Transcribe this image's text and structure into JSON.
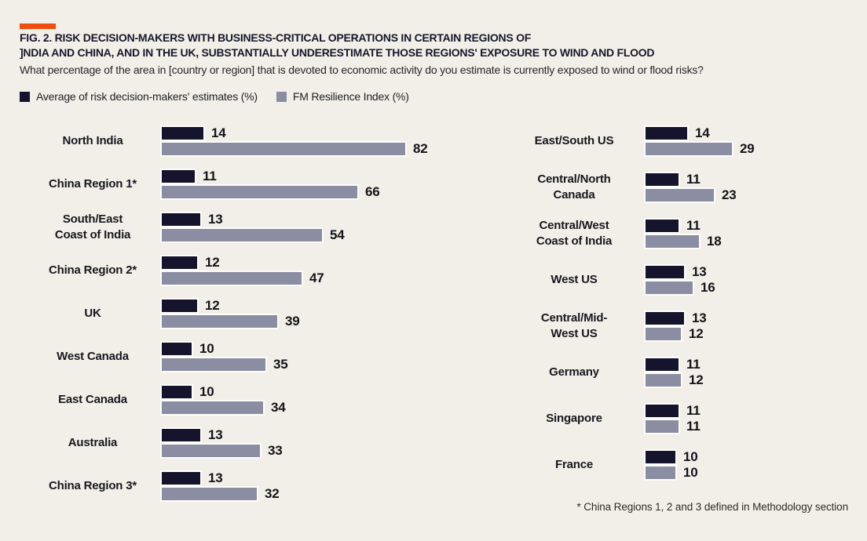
{
  "header": {
    "title_line1": "FIG. 2. RISK DECISION-MAKERS WITH BUSINESS-CRITICAL OPERATIONS IN CERTAIN REGIONS OF",
    "title_line2": "]NDIA AND CHINA, AND IN THE UK, SUBSTANTIALLY UNDERESTIMATE THOSE REGIONS' EXPOSURE TO WIND AND FLOOD",
    "subtitle": "What percentage of the area in [country or region] that is devoted to economic activity do you estimate is currently exposed to wind or flood risks?"
  },
  "legend": {
    "items": [
      {
        "label": "Average of risk decision-makers' estimates (%)",
        "color": "#15142c"
      },
      {
        "label": "FM Resilience Index (%)",
        "color": "#8b8ea3"
      }
    ]
  },
  "footnote": "* China Regions 1, 2 and 3 defined in Methodology section",
  "colors": {
    "background": "#f1efe7",
    "accent": "#f04e0e",
    "estimate_bar": "#15142c",
    "index_bar": "#8b8ea3",
    "text": "#17171f"
  },
  "chart_data": {
    "type": "bar",
    "orientation": "horizontal",
    "grid": false,
    "legend_position": "top",
    "value_range": [
      0,
      82
    ],
    "xlabel": "",
    "ylabel": "",
    "series_names": [
      "Average of risk decision-makers' estimates (%)",
      "FM Resilience Index (%)"
    ],
    "panels": [
      {
        "name": "left",
        "categories": [
          "North India",
          "China Region 1*",
          "South/East Coast of India",
          "China Region 2*",
          "UK",
          "West Canada",
          "East Canada",
          "Australia",
          "China Region 3*"
        ],
        "categories_display": [
          "North India",
          "China Region 1*",
          "South/East\nCoast of India",
          "China Region 2*",
          "UK",
          "West Canada",
          "East Canada",
          "Australia",
          "China Region 3*"
        ],
        "series": [
          {
            "name": "Average of risk decision-makers' estimates (%)",
            "values": [
              14,
              11,
              13,
              12,
              12,
              10,
              10,
              13,
              13
            ]
          },
          {
            "name": "FM Resilience Index (%)",
            "values": [
              82,
              66,
              54,
              47,
              39,
              35,
              34,
              33,
              32
            ]
          }
        ]
      },
      {
        "name": "right",
        "categories": [
          "East/South US",
          "Central/North Canada",
          "Central/West Coast of India",
          "West US",
          "Central/Mid-West US",
          "Germany",
          "Singapore",
          "France"
        ],
        "categories_display": [
          "East/South US",
          "Central/North\nCanada",
          "Central/West\nCoast of India",
          "West US",
          "Central/Mid-\nWest US",
          "Germany",
          "Singapore",
          "France"
        ],
        "series": [
          {
            "name": "Average of risk decision-makers' estimates (%)",
            "values": [
              14,
              11,
              11,
              13,
              13,
              11,
              11,
              10
            ]
          },
          {
            "name": "FM Resilience Index (%)",
            "values": [
              29,
              23,
              18,
              16,
              12,
              12,
              11,
              10
            ]
          }
        ]
      }
    ]
  }
}
